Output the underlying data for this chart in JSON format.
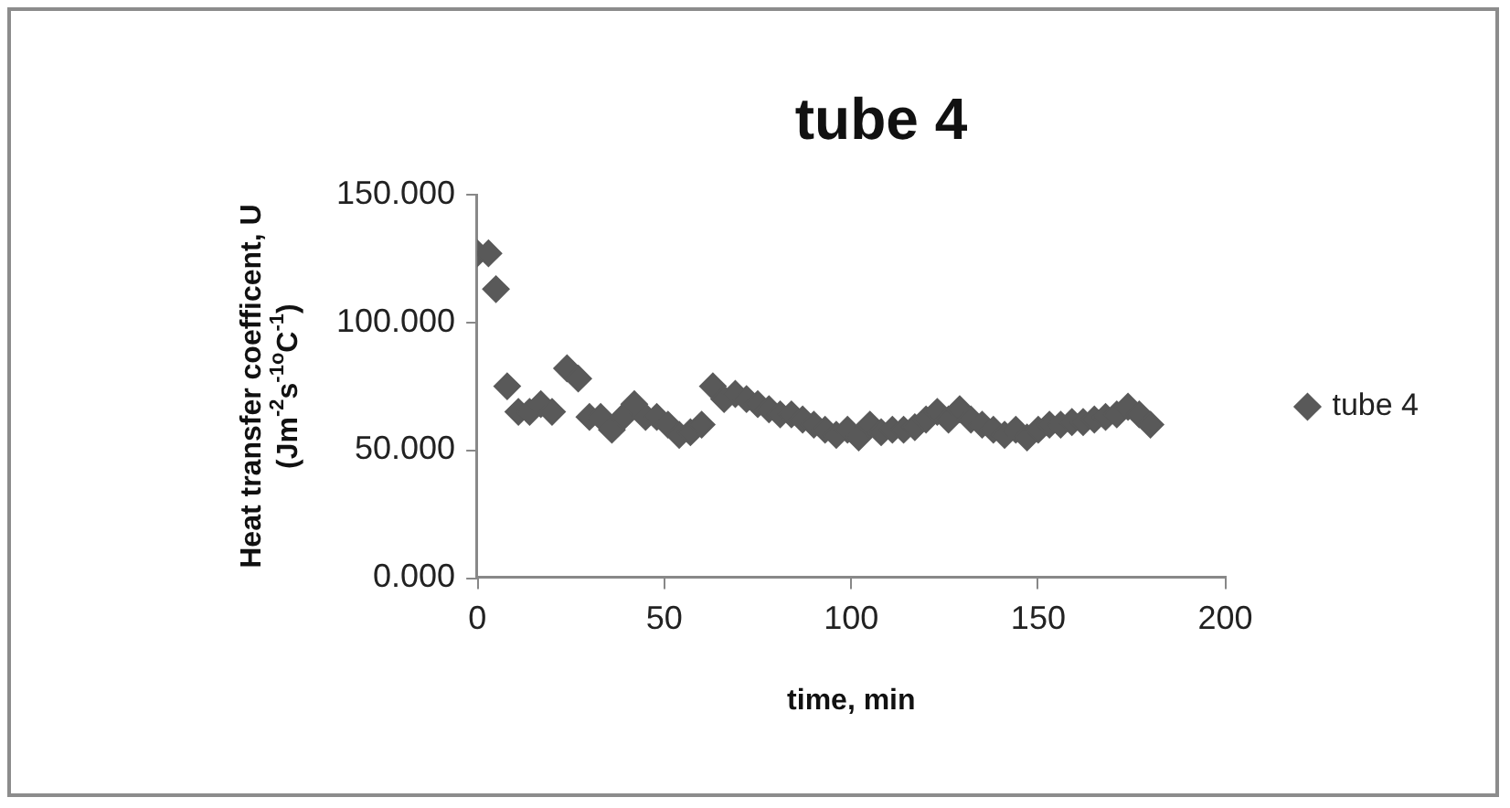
{
  "chart_data": {
    "type": "scatter",
    "title": "tube 4",
    "xlabel": "time, min",
    "ylabel": "Heat transfer coefficent, U\n(Jm$^{-2}$s$^{-1o}$C$^{-1}$)",
    "xlim": [
      0,
      200
    ],
    "xticks": [
      0,
      50,
      100,
      150,
      200
    ],
    "ylim": [
      0,
      150
    ],
    "yticks": [
      {
        "value": 0,
        "label": "0.000"
      },
      {
        "value": 50,
        "label": "50.000"
      },
      {
        "value": 100,
        "label": "100.000"
      },
      {
        "value": 150,
        "label": "150.000"
      }
    ],
    "grid": false,
    "legend": "right",
    "marker": "diamond",
    "series": [
      {
        "name": "tube 4",
        "color": "#595959",
        "x": [
          0,
          3,
          5,
          8,
          11,
          14,
          17,
          20,
          24,
          27,
          30,
          33,
          36,
          39,
          42,
          45,
          48,
          51,
          54,
          57,
          60,
          63,
          66,
          69,
          72,
          75,
          78,
          81,
          84,
          87,
          90,
          93,
          96,
          99,
          102,
          105,
          108,
          111,
          114,
          117,
          120,
          123,
          126,
          129,
          132,
          135,
          138,
          141,
          144,
          147,
          150,
          153,
          156,
          159,
          162,
          165,
          168,
          171,
          174,
          177,
          180
        ],
        "values": [
          127,
          127,
          113,
          75,
          65,
          65,
          68,
          65,
          82,
          78,
          63,
          63,
          58,
          63,
          68,
          63,
          63,
          60,
          56,
          57,
          60,
          75,
          70,
          72,
          70,
          68,
          66,
          64,
          64,
          62,
          60,
          58,
          56,
          58,
          55,
          60,
          57,
          58,
          58,
          59,
          62,
          65,
          62,
          66,
          62,
          60,
          58,
          56,
          58,
          55,
          58,
          60,
          60,
          61,
          61,
          62,
          63,
          64,
          67,
          64,
          60
        ]
      }
    ]
  }
}
